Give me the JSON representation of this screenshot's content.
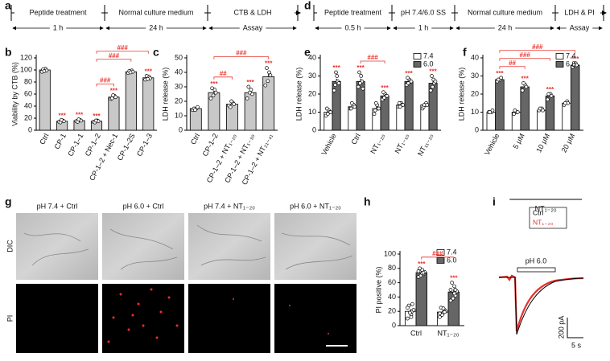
{
  "panel_labels": [
    "a",
    "b",
    "c",
    "d",
    "e",
    "f",
    "g",
    "h",
    "i"
  ],
  "timelines": [
    {
      "steps": [
        {
          "label": "Peptide treatment",
          "duration": "1 h"
        },
        {
          "label": "Normal culture medium",
          "duration": "24 h"
        },
        {
          "label": "CTB & LDH",
          "duration": "Assay"
        }
      ]
    },
    {
      "steps": [
        {
          "label": "Peptide treatment",
          "duration": "0.5 h"
        },
        {
          "label": "pH 7.4/6.0 SS",
          "duration": "1 h"
        },
        {
          "label": "Normal culture medium",
          "duration": "24 h"
        },
        {
          "label": "LDH & PI",
          "duration": "Assay"
        }
      ]
    }
  ],
  "chart_data": [
    {
      "type": "bar",
      "ylabel": "Viability by CTB (%)",
      "categories": [
        "Ctrl",
        "CP-1",
        "CP-1–1",
        "CP-1–2",
        "CP-1–2 + Nec-1",
        "CP-1–2S",
        "CP-1–3"
      ],
      "values": [
        100,
        15,
        16,
        15,
        55,
        97,
        87
      ],
      "errors": [
        1.5,
        1,
        1,
        1,
        2,
        1,
        2
      ],
      "points": [
        [
          97,
          102,
          99,
          101,
          98
        ],
        [
          14,
          16,
          15,
          13,
          17
        ],
        [
          15,
          17,
          16,
          14,
          18
        ],
        [
          14,
          16,
          15,
          13,
          16
        ],
        [
          52,
          57,
          55,
          53,
          58
        ],
        [
          95,
          99,
          97,
          98,
          96
        ],
        [
          84,
          89,
          86,
          90,
          85
        ]
      ],
      "color": "#c8c8c8",
      "stars": [
        null,
        "***",
        "***",
        "***",
        "***",
        null,
        "***"
      ],
      "brackets": [
        {
          "from": 3,
          "to": 4,
          "label": "###"
        },
        {
          "from": 3,
          "to": 5,
          "label": "###"
        },
        {
          "from": 3,
          "to": 6,
          "label": "###"
        }
      ],
      "ylim": [
        0,
        120
      ],
      "yticks": [
        0,
        20,
        40,
        60,
        80,
        100,
        120
      ]
    },
    {
      "type": "bar",
      "ylabel": "LDH release (%)",
      "categories": [
        "Ctrl",
        "CP-1–2",
        "CP-1–2 + NT₁₋₂₀",
        "CP-1–2 + NT₁₋₃₀",
        "CP-1–2 + NT₂₁₋₄₁"
      ],
      "values": [
        15,
        26,
        18,
        26,
        37
      ],
      "errors": [
        0.5,
        1.5,
        1,
        1.5,
        2
      ],
      "points": [
        [
          14,
          15,
          16,
          15,
          14
        ],
        [
          22,
          28,
          26,
          29,
          24
        ],
        [
          17,
          19,
          18,
          16,
          20
        ],
        [
          22,
          28,
          25,
          30,
          26
        ],
        [
          31,
          40,
          38,
          43,
          34
        ]
      ],
      "color": "#c8c8c8",
      "stars": [
        null,
        "***",
        null,
        "***",
        "***"
      ],
      "brackets": [
        {
          "from": 1,
          "to": 2,
          "label": "##"
        },
        {
          "from": 1,
          "to": 4,
          "label": "###"
        }
      ],
      "ylim": [
        0,
        50
      ],
      "yticks": [
        0,
        10,
        20,
        30,
        40,
        50
      ]
    },
    {
      "type": "bar",
      "ylabel": "LDH release (%)",
      "categories": [
        "Vehicle",
        "Ctrl",
        "NT₁₋₂₀",
        "NT₁₋₁₀",
        "NT₁₁₋₂₀"
      ],
      "series": [
        {
          "name": "7.4",
          "color": "#ffffff",
          "values": [
            10,
            13,
            12,
            14,
            14
          ],
          "errors": [
            0.6,
            0.5,
            1,
            0.4,
            0.4
          ],
          "points": [
            [
              8,
              11,
              10,
              12,
              9,
              10
            ],
            [
              12,
              13,
              14,
              12,
              15,
              13
            ],
            [
              9,
              14,
              12,
              11,
              15,
              12
            ],
            [
              13,
              15,
              14,
              15,
              13,
              14
            ],
            [
              12,
              14,
              15,
              13,
              14,
              14
            ]
          ],
          "stars": [
            null,
            null,
            null,
            null,
            null
          ]
        },
        {
          "name": "6.0",
          "color": "#666666",
          "values": [
            27,
            27,
            19,
            27,
            26
          ],
          "errors": [
            1.5,
            1.5,
            0.8,
            0.7,
            1.2
          ],
          "points": [
            [
              22,
              30,
              27,
              25,
              32,
              26
            ],
            [
              24,
              30,
              27,
              32,
              26,
              23
            ],
            [
              17,
              20,
              19,
              21,
              18,
              19
            ],
            [
              25,
              28,
              27,
              29,
              26,
              27
            ],
            [
              22,
              28,
              26,
              30,
              24,
              27
            ]
          ],
          "stars": [
            "***",
            "***",
            "***",
            "***",
            "***"
          ]
        }
      ],
      "brackets": [
        {
          "from": 1,
          "to": 2,
          "label": "###"
        }
      ],
      "legend": "top right",
      "ylim": [
        0,
        40
      ],
      "yticks": [
        0,
        10,
        20,
        30,
        40
      ]
    },
    {
      "type": "bar",
      "ylabel": "LDH release (%)",
      "categories": [
        "Vehicle",
        "5 μM",
        "10 μM",
        "20 μM"
      ],
      "series": [
        {
          "name": "7.4",
          "color": "#ffffff",
          "values": [
            10,
            10,
            11,
            15
          ],
          "errors": [
            0.3,
            0.3,
            0.4,
            0.5
          ],
          "points": [
            [
              10,
              10,
              11,
              10
            ],
            [
              9,
              10,
              10,
              11
            ],
            [
              11,
              12,
              11,
              12
            ],
            [
              14,
              16,
              15,
              15
            ]
          ],
          "stars": [
            null,
            null,
            null,
            null
          ]
        },
        {
          "name": "6.0",
          "color": "#666666",
          "values": [
            28,
            24,
            19,
            36
          ],
          "errors": [
            0.5,
            0.8,
            0.8,
            0.4
          ],
          "points": [
            [
              27,
              28,
              29,
              28
            ],
            [
              22,
              25,
              24,
              26
            ],
            [
              17,
              20,
              19,
              20
            ],
            [
              35,
              37,
              36,
              36
            ]
          ],
          "stars": [
            "***",
            "***",
            "***",
            "***"
          ]
        }
      ],
      "brackets": [
        {
          "from": 0,
          "to": 1,
          "label": "##"
        },
        {
          "from": 0,
          "to": 2,
          "label": "###"
        },
        {
          "from": 0,
          "to": 3,
          "label": "###"
        }
      ],
      "group_label": {
        "text": "NT₁₋₂₀",
        "from": 1,
        "to": 3
      },
      "legend": "top right",
      "ylim": [
        0,
        40
      ],
      "yticks": [
        0,
        10,
        20,
        30,
        40
      ]
    },
    {
      "type": "bar",
      "ylabel": "PI positive (%)",
      "categories": [
        "Ctrl",
        "NT₁₋₂₀"
      ],
      "series": [
        {
          "name": "7.4",
          "color": "#ffffff",
          "values": [
            20,
            19
          ],
          "errors": [
            3,
            2
          ],
          "points": [
            [
              10,
              15,
              20,
              28,
              18,
              22,
              25,
              12,
              30
            ],
            [
              12,
              18,
              22,
              25,
              15,
              20,
              17,
              24,
              19
            ]
          ],
          "stars": [
            null,
            null
          ]
        },
        {
          "name": "6.0",
          "color": "#666666",
          "values": [
            74,
            47
          ],
          "errors": [
            2,
            4
          ],
          "points": [
            [
              68,
              78,
              72,
              80,
              70,
              75,
              76,
              73,
              74
            ],
            [
              35,
              55,
              42,
              60,
              38,
              48,
              50,
              45,
              50
            ]
          ],
          "stars": [
            "***",
            "***"
          ]
        }
      ],
      "brackets": [
        {
          "from": 0,
          "to": 1,
          "label": "###"
        }
      ],
      "legend": "top right",
      "ylim": [
        0,
        100
      ],
      "yticks": [
        0,
        20,
        40,
        60,
        80,
        100
      ]
    }
  ],
  "imaging": {
    "columns": [
      "pH 7.4 + Ctrl",
      "pH 6.0 + Ctrl",
      "pH 7.4 + NT₁₋₂₀",
      "pH 6.0 + NT₁₋₂₀"
    ],
    "rows": [
      "DIC",
      "PI"
    ]
  },
  "trace": {
    "stimulus": "pH 6.0",
    "legend": [
      {
        "name": "Ctrl",
        "color": "#000000"
      },
      {
        "name": "NT₁₋₂₀",
        "color": "#e8322c"
      }
    ],
    "scale_y": "200 pA",
    "scale_x": "5 s"
  }
}
